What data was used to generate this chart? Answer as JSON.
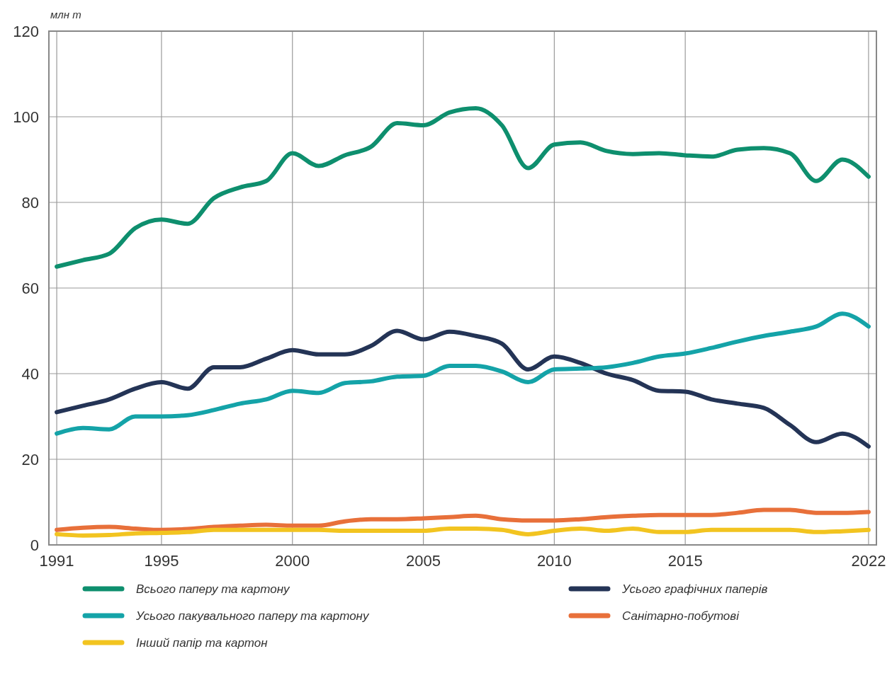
{
  "chart_data": {
    "type": "line",
    "ylabel": "млн т",
    "x": [
      1991,
      1992,
      1993,
      1994,
      1995,
      1996,
      1997,
      1998,
      1999,
      2000,
      2001,
      2002,
      2003,
      2004,
      2005,
      2006,
      2007,
      2008,
      2009,
      2010,
      2011,
      2012,
      2013,
      2014,
      2015,
      2016,
      2017,
      2018,
      2019,
      2020,
      2021,
      2022
    ],
    "xlim": [
      1990.7,
      2022.3
    ],
    "xticks": [
      1991,
      1995,
      2000,
      2005,
      2010,
      2015,
      2022
    ],
    "ylim": [
      0,
      120
    ],
    "yticks": [
      0,
      20,
      40,
      60,
      80,
      100,
      120
    ],
    "grid": true,
    "legend": "bottom",
    "line_style": "solid",
    "marker": "none",
    "series": [
      {
        "name": "Всього паперу та картону",
        "color": "#0e8f6e",
        "values": [
          65,
          66.5,
          68,
          74,
          76,
          75,
          81,
          83.5,
          85,
          91.5,
          88.5,
          91,
          93,
          98.5,
          98,
          101,
          102,
          98,
          88,
          93.5,
          94,
          92,
          91.3,
          91.5,
          91,
          90.7,
          92.3,
          92.7,
          91.5,
          85,
          90,
          86
        ]
      },
      {
        "name": "Усього графічних паперів",
        "color": "#243456",
        "values": [
          31,
          32.5,
          34,
          36.5,
          38,
          36.5,
          41.5,
          41.5,
          43.5,
          45.5,
          44.5,
          44.5,
          46.5,
          50,
          48,
          49.8,
          48.8,
          47,
          41,
          44,
          42.5,
          40,
          38.5,
          36,
          35.8,
          34,
          33,
          32,
          28,
          24,
          26,
          23
        ]
      },
      {
        "name": "Усього пакувального паперу та картону",
        "color": "#14a3a8",
        "values": [
          26,
          27.3,
          27,
          30,
          30,
          30.3,
          31.5,
          33,
          34,
          36,
          35.5,
          37.8,
          38.2,
          39.3,
          39.5,
          41.8,
          41.8,
          40.5,
          38,
          41,
          41.2,
          41.5,
          42.5,
          44,
          44.7,
          46,
          47.5,
          48.8,
          49.8,
          51,
          54,
          51
        ]
      },
      {
        "name": "Санітарно-побутові",
        "color": "#e8703a",
        "values": [
          3.5,
          4,
          4.2,
          3.8,
          3.5,
          3.7,
          4.2,
          4.5,
          4.7,
          4.5,
          4.5,
          5.5,
          6,
          6,
          6.2,
          6.5,
          6.8,
          6,
          5.7,
          5.7,
          6,
          6.5,
          6.8,
          7,
          7,
          7,
          7.5,
          8.2,
          8.2,
          7.5,
          7.5,
          7.7
        ]
      },
      {
        "name": "Інший папір та картон",
        "color": "#f2c420",
        "values": [
          2.5,
          2.2,
          2.3,
          2.7,
          2.8,
          3,
          3.5,
          3.5,
          3.5,
          3.5,
          3.5,
          3.3,
          3.3,
          3.3,
          3.3,
          3.8,
          3.8,
          3.5,
          2.5,
          3.3,
          3.8,
          3.3,
          3.8,
          3,
          3,
          3.5,
          3.5,
          3.5,
          3.5,
          3,
          3.2,
          3.5
        ]
      }
    ]
  }
}
